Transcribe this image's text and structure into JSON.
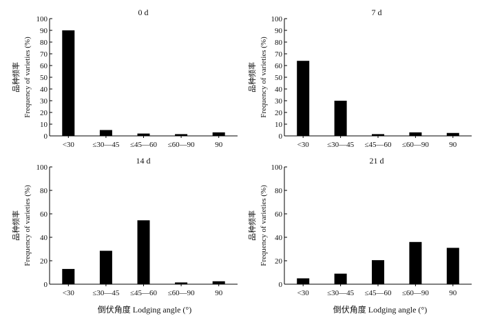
{
  "chart_data": [
    {
      "type": "bar",
      "title": "0 d",
      "ylabel_cn": "品种频率",
      "ylabel": "Frequency of varieties (%)",
      "categories": [
        "<30",
        "≤30—45",
        "≤45—60",
        "≤60—90",
        "90"
      ],
      "values": [
        90,
        5,
        2,
        1.5,
        3
      ],
      "ylim": [
        0,
        100
      ],
      "yticks": [
        0,
        10,
        20,
        30,
        40,
        50,
        60,
        70,
        80,
        90,
        100
      ],
      "grid": false
    },
    {
      "type": "bar",
      "title": "7 d",
      "ylabel_cn": "品种频率",
      "ylabel": "Frequency of varieties (%)",
      "categories": [
        "<30",
        "≤30—45",
        "≤45—60",
        "≤60—90",
        "90"
      ],
      "values": [
        64,
        30,
        1.5,
        3,
        2.5
      ],
      "ylim": [
        0,
        100
      ],
      "yticks": [
        0,
        10,
        20,
        30,
        40,
        50,
        60,
        70,
        80,
        90,
        100
      ],
      "grid": false
    },
    {
      "type": "bar",
      "title": "14 d",
      "ylabel_cn": "品种频率",
      "ylabel": "Frequency of varieties (%)",
      "categories": [
        "<30",
        "≤30—45",
        "≤45—60",
        "≤60—90",
        "90"
      ],
      "values": [
        13,
        28.5,
        54.5,
        1.5,
        2.5
      ],
      "ylim": [
        0,
        100
      ],
      "yticks": [
        0,
        20,
        40,
        60,
        80,
        100
      ],
      "grid": false
    },
    {
      "type": "bar",
      "title": "21 d",
      "ylabel_cn": "品种频率",
      "ylabel": "Frequency of varieties (%)",
      "categories": [
        "<30",
        "≤30—45",
        "≤45—60",
        "≤60—90",
        "90"
      ],
      "values": [
        5,
        9,
        20.5,
        36,
        31
      ],
      "ylim": [
        0,
        100
      ],
      "yticks": [
        0,
        20,
        40,
        60,
        80,
        100
      ],
      "grid": false
    }
  ],
  "xlabel": "倒伏角度 Lodging angle (°)",
  "colors": {
    "bar": "#000000",
    "axis": "#000000"
  }
}
